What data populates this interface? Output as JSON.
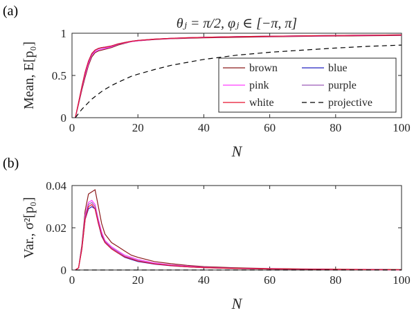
{
  "chart_data": [
    {
      "type": "line",
      "panel_label": "(a)",
      "title": "θⱼ = π/2,  φⱼ ∈ [−π, π]",
      "xlabel": "N",
      "ylabel": "Mean, E[p₀]",
      "xlim": [
        0,
        100
      ],
      "ylim": [
        0,
        1
      ],
      "xticks": [
        "0",
        "20",
        "40",
        "60",
        "80",
        "100"
      ],
      "yticks": [
        "0",
        "0.5",
        "1"
      ],
      "grid": false,
      "legend_position": "bottom-right",
      "x": [
        1,
        2,
        3,
        4,
        5,
        6,
        7,
        8,
        9,
        10,
        12,
        14,
        16,
        18,
        20,
        25,
        30,
        35,
        40,
        50,
        60,
        70,
        80,
        90,
        100
      ],
      "series": [
        {
          "name": "brown",
          "color": "#8b1a1a",
          "dash": "solid",
          "values": [
            0,
            0.16,
            0.33,
            0.48,
            0.62,
            0.72,
            0.77,
            0.79,
            0.8,
            0.81,
            0.83,
            0.86,
            0.88,
            0.9,
            0.91,
            0.925,
            0.935,
            0.94,
            0.945,
            0.952,
            0.958,
            0.963,
            0.967,
            0.97,
            0.973
          ]
        },
        {
          "name": "blue",
          "color": "#2020c0",
          "dash": "solid",
          "values": [
            0,
            0.18,
            0.37,
            0.54,
            0.67,
            0.76,
            0.8,
            0.82,
            0.83,
            0.835,
            0.85,
            0.875,
            0.89,
            0.905,
            0.915,
            0.93,
            0.94,
            0.947,
            0.952,
            0.96,
            0.965,
            0.97,
            0.974,
            0.977,
            0.98
          ]
        },
        {
          "name": "pink",
          "color": "#ff3cff",
          "dash": "solid",
          "values": [
            0,
            0.17,
            0.35,
            0.51,
            0.64,
            0.74,
            0.78,
            0.8,
            0.81,
            0.82,
            0.84,
            0.87,
            0.885,
            0.9,
            0.91,
            0.928,
            0.938,
            0.944,
            0.95,
            0.957,
            0.962,
            0.967,
            0.971,
            0.974,
            0.977
          ]
        },
        {
          "name": "purple",
          "color": "#9b59b6",
          "dash": "solid",
          "values": [
            0,
            0.18,
            0.36,
            0.53,
            0.66,
            0.75,
            0.795,
            0.815,
            0.825,
            0.83,
            0.848,
            0.872,
            0.888,
            0.903,
            0.913,
            0.929,
            0.939,
            0.946,
            0.951,
            0.959,
            0.964,
            0.969,
            0.973,
            0.976,
            0.979
          ]
        },
        {
          "name": "white",
          "color": "#e8112d",
          "dash": "solid",
          "values": [
            0,
            0.18,
            0.37,
            0.54,
            0.67,
            0.76,
            0.8,
            0.82,
            0.83,
            0.835,
            0.85,
            0.875,
            0.89,
            0.905,
            0.915,
            0.93,
            0.94,
            0.947,
            0.952,
            0.96,
            0.965,
            0.97,
            0.974,
            0.977,
            0.98
          ]
        },
        {
          "name": "projective",
          "color": "#000000",
          "dash": "dashed",
          "values": [
            0,
            0.05,
            0.1,
            0.14,
            0.18,
            0.22,
            0.25,
            0.28,
            0.31,
            0.335,
            0.38,
            0.42,
            0.455,
            0.49,
            0.515,
            0.57,
            0.62,
            0.655,
            0.69,
            0.74,
            0.775,
            0.8,
            0.825,
            0.845,
            0.86
          ]
        }
      ]
    },
    {
      "type": "line",
      "panel_label": "(b)",
      "xlabel": "N",
      "ylabel": "Var., σ²[p₀]",
      "xlim": [
        0,
        100
      ],
      "ylim": [
        0,
        0.04
      ],
      "xticks": [
        "0",
        "20",
        "40",
        "60",
        "80",
        "100"
      ],
      "yticks": [
        "0",
        "0.02",
        "0.04"
      ],
      "grid": false,
      "x": [
        1,
        2,
        3,
        4,
        5,
        6,
        7,
        8,
        9,
        10,
        12,
        14,
        16,
        18,
        20,
        25,
        30,
        35,
        40,
        50,
        60,
        70,
        80,
        90,
        100
      ],
      "series": [
        {
          "name": "brown",
          "color": "#8b1a1a",
          "dash": "solid",
          "values": [
            0,
            0.001,
            0.012,
            0.028,
            0.036,
            0.037,
            0.038,
            0.03,
            0.022,
            0.017,
            0.013,
            0.011,
            0.009,
            0.007,
            0.006,
            0.004,
            0.003,
            0.0022,
            0.0016,
            0.001,
            0.0007,
            0.0005,
            0.0004,
            0.0003,
            0.0002
          ]
        },
        {
          "name": "blue",
          "color": "#2020c0",
          "dash": "solid",
          "values": [
            0,
            0.001,
            0.01,
            0.024,
            0.029,
            0.03,
            0.029,
            0.022,
            0.016,
            0.013,
            0.01,
            0.008,
            0.006,
            0.005,
            0.004,
            0.0028,
            0.002,
            0.0015,
            0.0011,
            0.0007,
            0.0005,
            0.0004,
            0.0003,
            0.0002,
            0.0001
          ]
        },
        {
          "name": "pink",
          "color": "#ff3cff",
          "dash": "solid",
          "values": [
            0,
            0.001,
            0.011,
            0.026,
            0.032,
            0.033,
            0.031,
            0.024,
            0.018,
            0.014,
            0.011,
            0.009,
            0.007,
            0.006,
            0.005,
            0.0033,
            0.0024,
            0.0018,
            0.0013,
            0.0008,
            0.0006,
            0.0004,
            0.0003,
            0.0002,
            0.0001
          ]
        },
        {
          "name": "purple",
          "color": "#9b59b6",
          "dash": "solid",
          "values": [
            0,
            0.001,
            0.011,
            0.025,
            0.031,
            0.032,
            0.03,
            0.023,
            0.017,
            0.0135,
            0.0105,
            0.0085,
            0.0065,
            0.0055,
            0.0045,
            0.003,
            0.0022,
            0.0016,
            0.0012,
            0.0008,
            0.0005,
            0.0004,
            0.0003,
            0.0002,
            0.0001
          ]
        },
        {
          "name": "white",
          "color": "#e8112d",
          "dash": "solid",
          "values": [
            0,
            0.001,
            0.01,
            0.024,
            0.03,
            0.031,
            0.029,
            0.022,
            0.0165,
            0.013,
            0.01,
            0.008,
            0.0062,
            0.0052,
            0.0042,
            0.0029,
            0.0021,
            0.0015,
            0.0011,
            0.0007,
            0.0005,
            0.0004,
            0.0003,
            0.0002,
            0.0001
          ]
        },
        {
          "name": "projective",
          "color": "#000000",
          "dash": "dashed",
          "values": [
            0,
            0,
            0,
            0,
            0,
            0,
            0,
            0,
            0,
            0,
            0,
            0,
            0,
            0,
            0,
            0,
            0,
            0,
            0,
            0,
            0,
            0,
            0,
            0,
            0
          ]
        }
      ]
    }
  ]
}
